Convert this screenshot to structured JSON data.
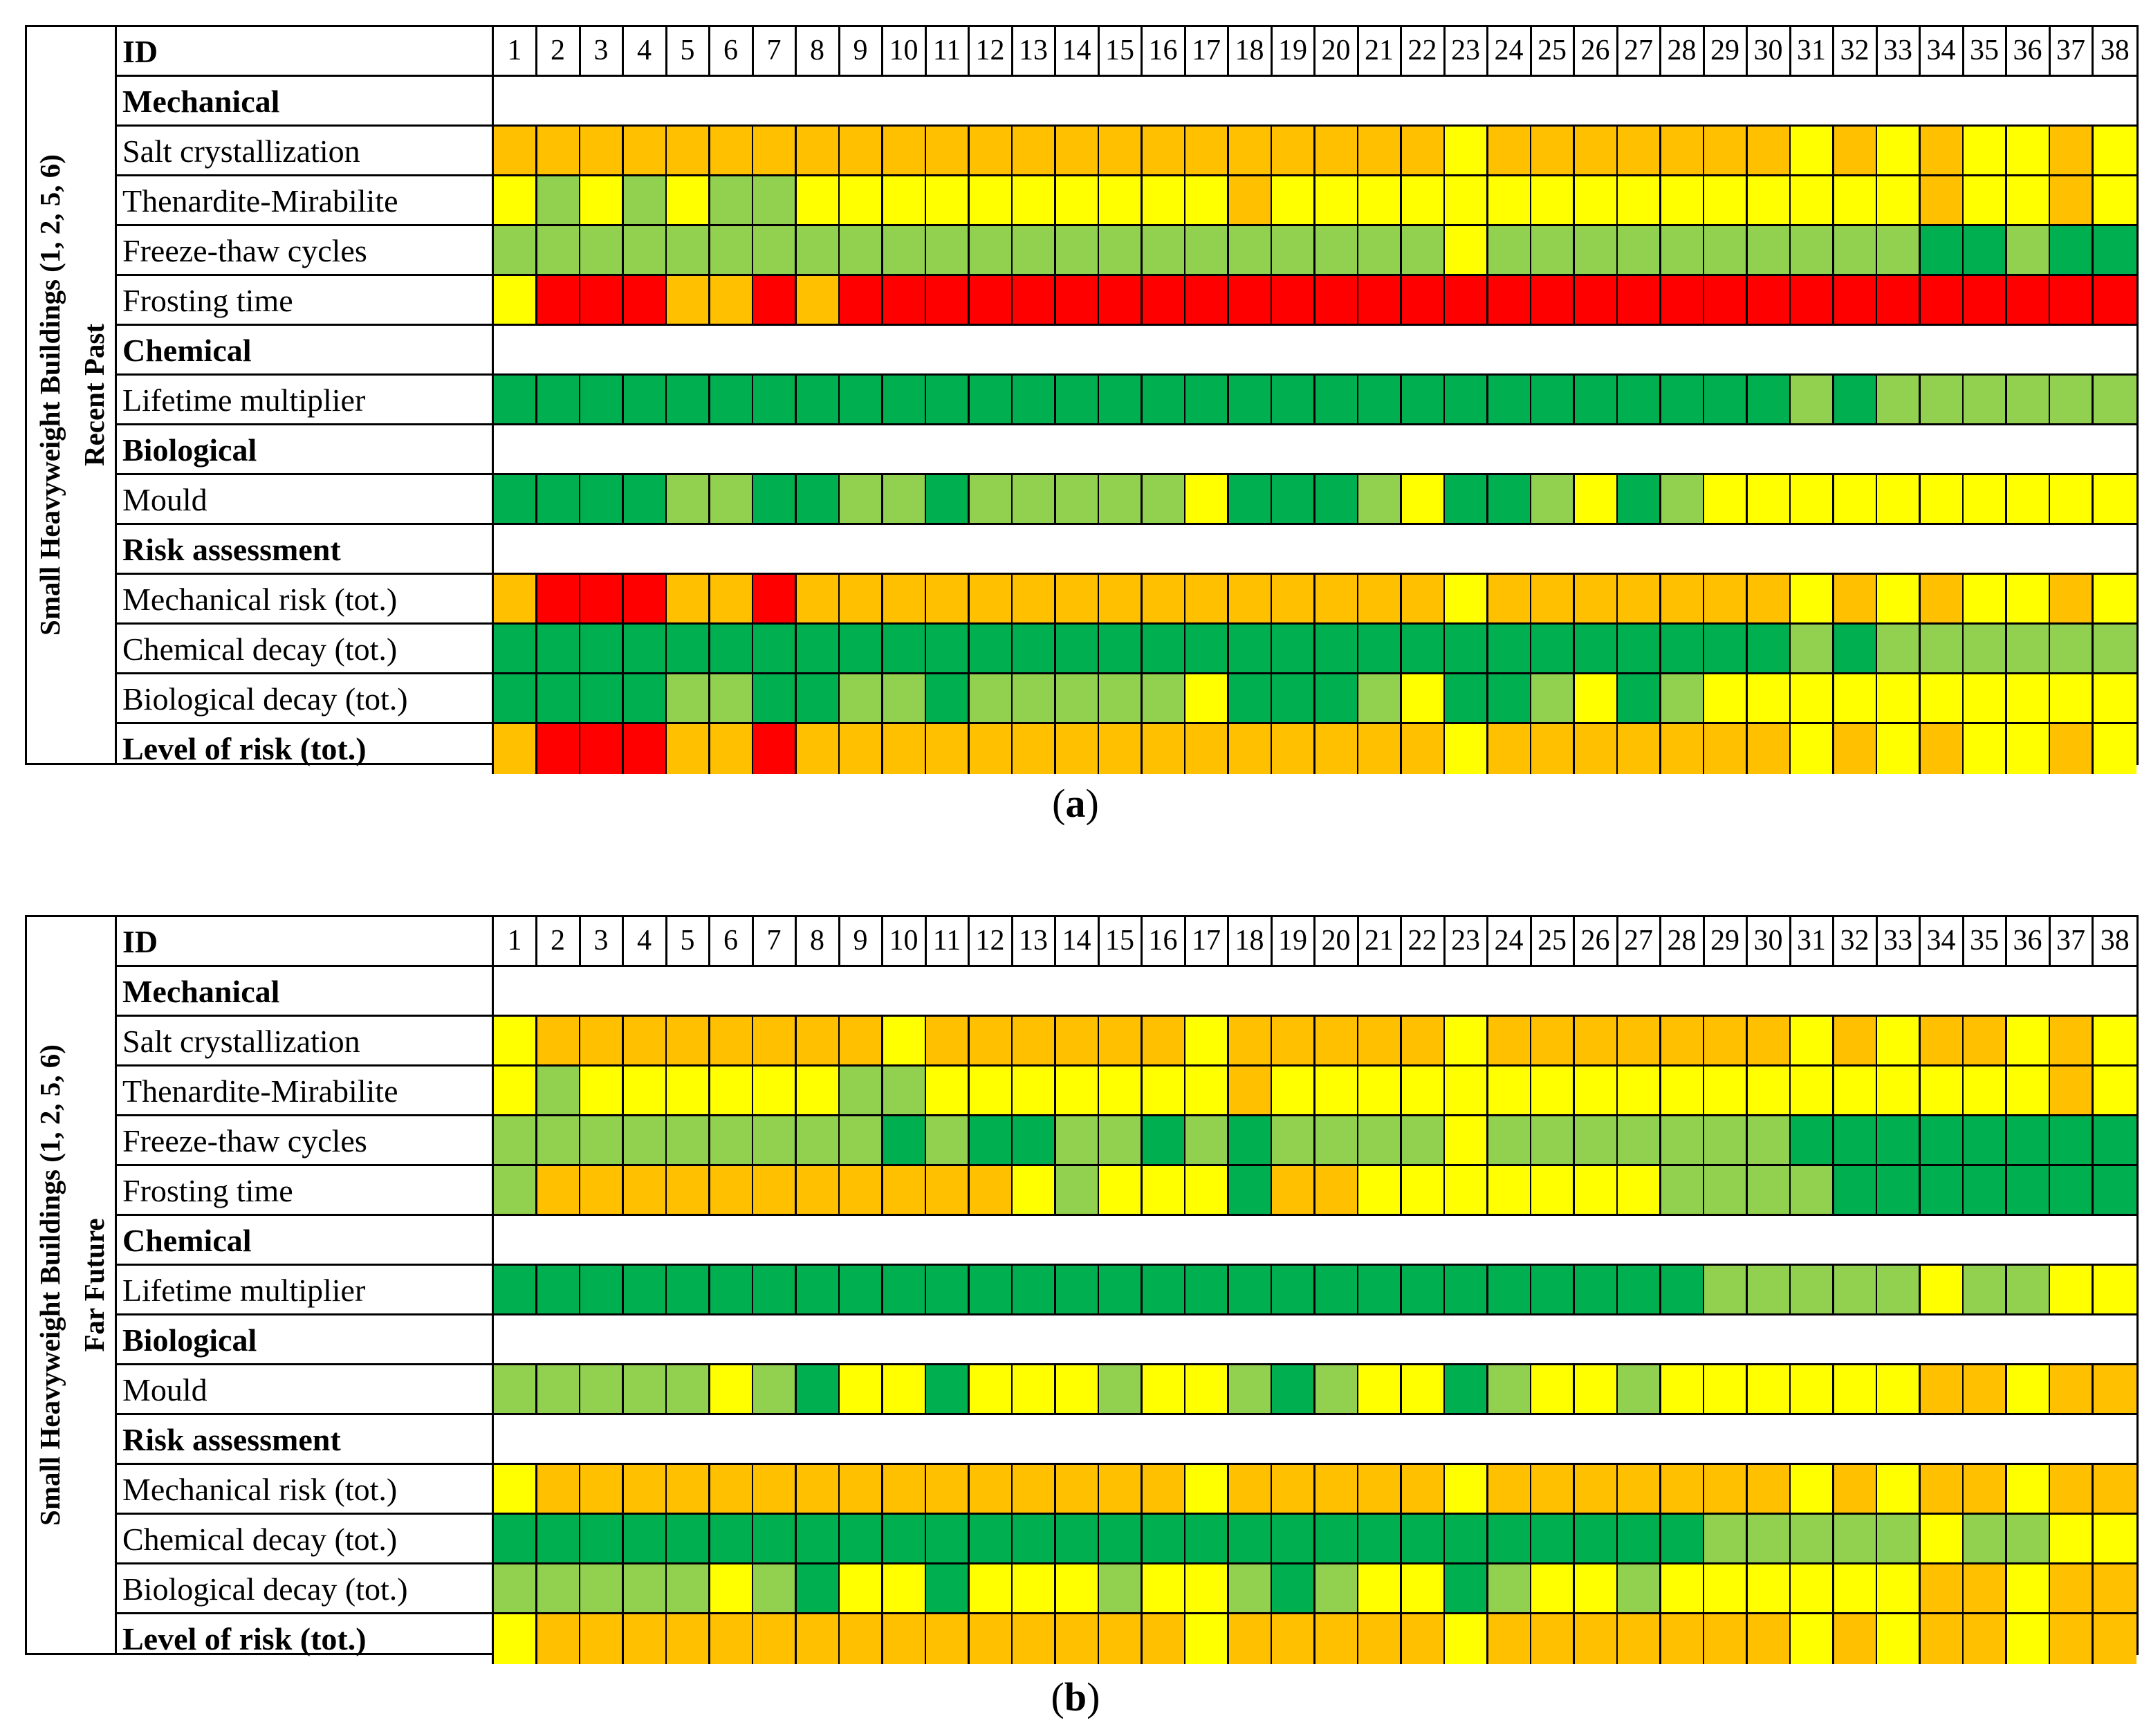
{
  "colors": {
    "R": "#ff0000",
    "O": "#ffc000",
    "Y": "#ffff00",
    "LG": "#92d050",
    "DG": "#00b050"
  },
  "chart_data": [
    {
      "type": "table",
      "caption_letter": "a",
      "side_label_line1": "Small Heavyweight Buildings (1, 2, 5, 6)",
      "side_label_line2": "Recent Past",
      "id_header": "ID",
      "ids": [
        "1",
        "2",
        "3",
        "4",
        "5",
        "6",
        "7",
        "8",
        "9",
        "10",
        "11",
        "12",
        "13",
        "14",
        "15",
        "16",
        "17",
        "18",
        "19",
        "20",
        "21",
        "22",
        "23",
        "24",
        "25",
        "26",
        "27",
        "28",
        "29",
        "30",
        "31",
        "32",
        "33",
        "34",
        "35",
        "36",
        "37",
        "38"
      ],
      "rows": [
        {
          "label": "Mechanical",
          "bold": true,
          "section": true
        },
        {
          "label": "Salt crystallization",
          "values": "OOOOOOOOOOOOOOOOOOOOOOYOOOOOOOYOYOYYOY"
        },
        {
          "label": "Thenardite-Mirabilite",
          "values": "YGYGYGGYYYYYYYYYYOYYYYYYYYYYYYYYYOYYOY"
        },
        {
          "label": "Freeze-thaw cycles",
          "values": "GGGGGGGGGGGGGGGGGGGGGGYGGGGGGGGGGDDGDD"
        },
        {
          "label": "Frosting time",
          "values": "YRRROORORRRRRRRRRRRRRRRRRRRRRRRRRRRRRR"
        },
        {
          "label": "Chemical",
          "bold": true,
          "section": true
        },
        {
          "label": "Lifetime multiplier",
          "values": "DDDDDDDDDDDDDDDDDDDDDDDDDDDDDDGDGGGGGG"
        },
        {
          "label": "Biological",
          "bold": true,
          "section": true
        },
        {
          "label": "Mould",
          "values": "DDDDGGDDGGDGGGGGYDDDGYDDGYDGYYYYYYYYYY"
        },
        {
          "label": "Risk assessment",
          "bold": true,
          "section": true
        },
        {
          "label": "Mechanical risk (tot.)",
          "values": "ORRROOROOOOOOOOOOOOOOOYOOOOOOOYOYOYYOY"
        },
        {
          "label": "Chemical decay (tot.)",
          "values": "DDDDDDDDDDDDDDDDDDDDDDDDDDDDDDGDGGGGGG"
        },
        {
          "label": "Biological decay (tot.)",
          "values": "DDDDGGDDGGDGGGGGYDDDGYDDGYDGYYYYYYYYYY"
        },
        {
          "label": "Level of risk (tot.)",
          "bold": true,
          "values": "ORRROOROOOOOOOOOOOOOOOYOOOOOOOYOYOYYOY"
        }
      ]
    },
    {
      "type": "table",
      "caption_letter": "b",
      "side_label_line1": "Small Heavyweight Buildings (1, 2, 5, 6)",
      "side_label_line2": "Far Future",
      "id_header": "ID",
      "ids": [
        "1",
        "2",
        "3",
        "4",
        "5",
        "6",
        "7",
        "8",
        "9",
        "10",
        "11",
        "12",
        "13",
        "14",
        "15",
        "16",
        "17",
        "18",
        "19",
        "20",
        "21",
        "22",
        "23",
        "24",
        "25",
        "26",
        "27",
        "28",
        "29",
        "30",
        "31",
        "32",
        "33",
        "34",
        "35",
        "36",
        "37",
        "38"
      ],
      "rows": [
        {
          "label": "Mechanical",
          "bold": true,
          "section": true
        },
        {
          "label": "Salt crystallization",
          "values": "YOOOOOOOOYOOOOOOYOOOOOYOOOOOOOYOYOOYOY"
        },
        {
          "label": "Thenardite-Mirabilite",
          "values": "YGYYYYYYGGYYYYYYYOYYYYYYYYYYYYYYYYYYOY"
        },
        {
          "label": "Freeze-thaw cycles",
          "values": "GGGGGGGGGDGDDGGDGDGGGGYGGGGGGGDDDDDDDD"
        },
        {
          "label": "Frosting time",
          "values": "GOOOOOOOOOOOYGYYYDOOYYYYYYYGGGGDDDDDDD"
        },
        {
          "label": "Chemical",
          "bold": true,
          "section": true
        },
        {
          "label": "Lifetime multiplier",
          "values": "DDDDDDDDDDDDDDDDDDDDDDDDDDDDGGGGGYGGYY"
        },
        {
          "label": "Biological",
          "bold": true,
          "section": true
        },
        {
          "label": "Mould",
          "values": "GGGGGYGDYYDYYYGYYGDGYYDGYYGYYYYYYOOYOO"
        },
        {
          "label": "Risk assessment",
          "bold": true,
          "section": true
        },
        {
          "label": "Mechanical risk (tot.)",
          "values": "YOOOOOOOOOOOOOOOYOOOOOYOOOOOOOYOYOOYOO"
        },
        {
          "label": "Chemical decay (tot.)",
          "values": "DDDDDDDDDDDDDDDDDDDDDDDDDDDDGGGGGYGGYY"
        },
        {
          "label": "Biological decay (tot.)",
          "values": "GGGGGYGDYYDYYYGYYGDGYYDGYYGYYYYYYOOYOO"
        },
        {
          "label": "Level of risk (tot.)",
          "bold": true,
          "values": "YOOOOOOOOOOOOOOOYOOOOOYOOOOOOOYOYOOYOO"
        }
      ]
    }
  ]
}
